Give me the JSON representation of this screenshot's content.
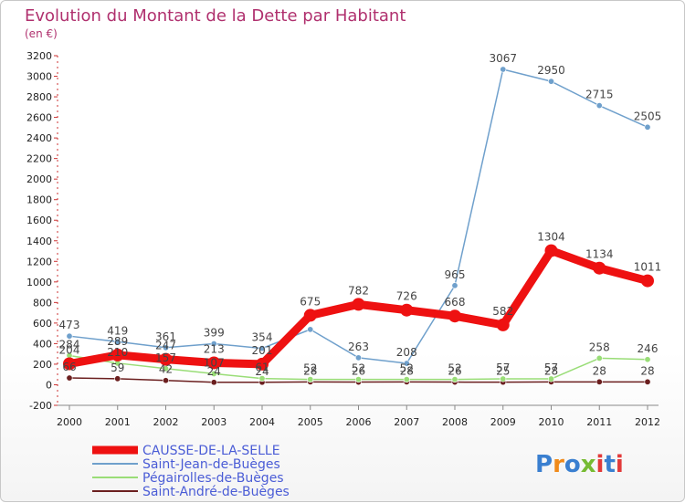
{
  "chart_data": {
    "type": "line",
    "title": "Evolution du Montant de la Dette par Habitant",
    "subtitle": "(en €)",
    "x": [
      "2000",
      "2001",
      "2002",
      "2003",
      "2004",
      "2005",
      "2006",
      "2007",
      "2008",
      "2009",
      "2010",
      "2011",
      "2012"
    ],
    "ylim": [
      -200,
      3200
    ],
    "yticks": [
      -200,
      0,
      200,
      400,
      600,
      800,
      1000,
      1200,
      1400,
      1600,
      1800,
      2000,
      2200,
      2400,
      2600,
      2800,
      3000,
      3200
    ],
    "grid": false,
    "legend_position": "bottom-left",
    "series": [
      {
        "name": "CAUSSE-DE-LA-SELLE",
        "color": "#ee1111",
        "values": [
          204,
          289,
          247,
          213,
          201,
          675,
          782,
          726,
          668,
          582,
          1304,
          1134,
          1011
        ],
        "labels": [
          "204",
          "289",
          "247",
          "213",
          "201",
          "675",
          "782",
          "726",
          "668",
          "582",
          "1304",
          "1134",
          "1011"
        ]
      },
      {
        "name": "Saint-Jean-de-Buèges",
        "color": "#6fa0cc",
        "values": [
          473,
          419,
          361,
          399,
          354,
          538,
          263,
          208,
          965,
          3067,
          2950,
          2715,
          2505
        ],
        "labels": [
          "473",
          "419",
          "361",
          "399",
          "354",
          "",
          "263",
          "208",
          "965",
          "3067",
          "2950",
          "2715",
          "2505"
        ]
      },
      {
        "name": "Pégairolles-de-Buèges",
        "color": "#99dd77",
        "values": [
          284,
          210,
          157,
          107,
          61,
          52,
          52,
          52,
          52,
          57,
          57,
          258,
          246
        ],
        "labels": [
          "284",
          "210",
          "157",
          "107",
          "61",
          "52",
          "52",
          "52",
          "52",
          "57",
          "57",
          "258",
          "246"
        ]
      },
      {
        "name": "Saint-André-de-Buèges",
        "color": "#6b1f1f",
        "values": [
          66,
          59,
          42,
          24,
          24,
          28,
          26,
          28,
          26,
          25,
          28,
          28,
          28
        ],
        "labels": [
          "66",
          "59",
          "42",
          "24",
          "24",
          "28",
          "26",
          "28",
          "26",
          "25",
          "28",
          "28",
          "28"
        ]
      }
    ]
  },
  "brand": {
    "logo_text": "Proxiti"
  }
}
